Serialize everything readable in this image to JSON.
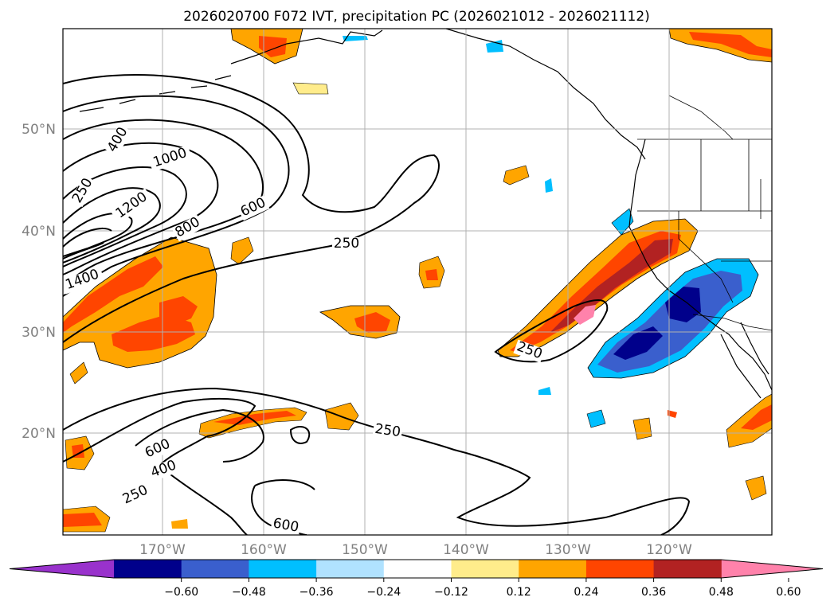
{
  "title": "2026020700 F072 IVT, precipitation PC (2026021012 - 2026021112)",
  "lat_labels": [
    "50°N",
    "40°N",
    "30°N",
    "20°N"
  ],
  "lon_labels": [
    "170°W",
    "160°W",
    "150°W",
    "140°W",
    "130°W",
    "120°W"
  ],
  "colorbar": {
    "ticks": [
      "−0.60",
      "−0.48",
      "−0.36",
      "−0.24",
      "−0.12",
      "0.12",
      "0.24",
      "0.36",
      "0.48",
      "0.60"
    ],
    "colors": [
      "#9932cc",
      "#00008b",
      "#3a5fcd",
      "#00bfff",
      "#b0e2ff",
      "#ffffff",
      "#ffec8b",
      "#ffa500",
      "#ff4500",
      "#b22222",
      "#ff82ab"
    ]
  },
  "contour_labels": {
    "c250a": "250",
    "c400a": "400",
    "c1000": "1000",
    "c1200": "1200",
    "c1400": "1400",
    "c800": "800",
    "c600a": "600",
    "c250b": "250",
    "c250c": "250",
    "c250d": "250",
    "c600b": "600",
    "c400b": "400",
    "c250e": "250",
    "c600c": "600"
  }
}
